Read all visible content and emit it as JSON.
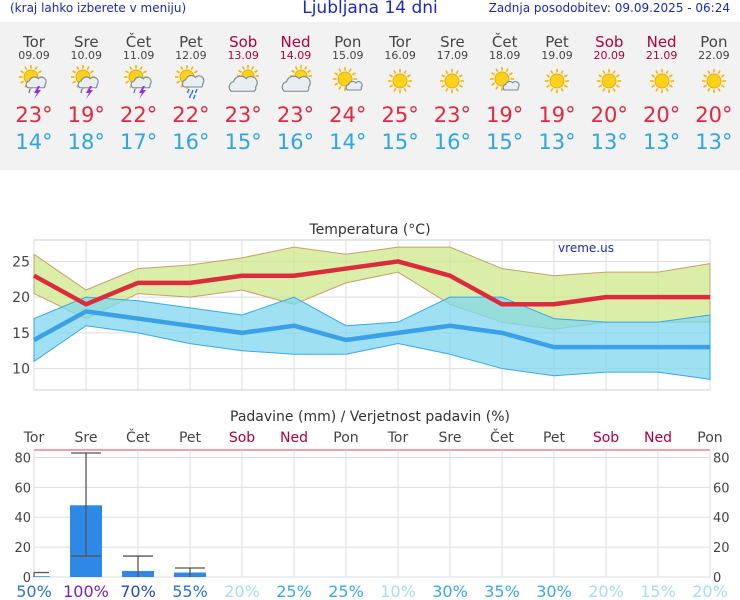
{
  "header": {
    "menu_hint": "(kraj lahko izberete v meniju)",
    "title": "Ljubljana 14 dni",
    "updated": "Zadnja posodobitev: 09.09.2025 - 06:24"
  },
  "colors": {
    "tmax": "#e0283e",
    "tmin": "#2ca6e4",
    "weekend": "#b00040",
    "rain_bar": "#2e88e8"
  },
  "days": [
    {
      "name": "Tor",
      "date": "09.09",
      "weekend": false,
      "icon": "sun-cloud-thunder-icon",
      "tmax": "23°",
      "tmin": "14°"
    },
    {
      "name": "Sre",
      "date": "10.09",
      "weekend": false,
      "icon": "sun-cloud-thunder-icon",
      "tmax": "19°",
      "tmin": "18°"
    },
    {
      "name": "Čet",
      "date": "11.09",
      "weekend": false,
      "icon": "sun-cloud-thunder-icon",
      "tmax": "22°",
      "tmin": "17°"
    },
    {
      "name": "Pet",
      "date": "12.09",
      "weekend": false,
      "icon": "sun-cloud-rain-icon",
      "tmax": "22°",
      "tmin": "16°"
    },
    {
      "name": "Sob",
      "date": "13.09",
      "weekend": true,
      "icon": "cloudy-sun-icon",
      "tmax": "23°",
      "tmin": "15°"
    },
    {
      "name": "Ned",
      "date": "14.09",
      "weekend": true,
      "icon": "cloudy-sun-icon",
      "tmax": "23°",
      "tmin": "16°"
    },
    {
      "name": "Pon",
      "date": "15.09",
      "weekend": false,
      "icon": "sun-small-cloud-icon",
      "tmax": "24°",
      "tmin": "14°"
    },
    {
      "name": "Tor",
      "date": "16.09",
      "weekend": false,
      "icon": "sun-icon",
      "tmax": "25°",
      "tmin": "15°"
    },
    {
      "name": "Sre",
      "date": "17.09",
      "weekend": false,
      "icon": "sun-icon",
      "tmax": "23°",
      "tmin": "16°"
    },
    {
      "name": "Čet",
      "date": "18.09",
      "weekend": false,
      "icon": "sun-small-cloud-icon",
      "tmax": "19°",
      "tmin": "15°"
    },
    {
      "name": "Pet",
      "date": "19.09",
      "weekend": false,
      "icon": "sun-icon",
      "tmax": "19°",
      "tmin": "13°"
    },
    {
      "name": "Sob",
      "date": "20.09",
      "weekend": true,
      "icon": "sun-icon",
      "tmax": "20°",
      "tmin": "13°"
    },
    {
      "name": "Ned",
      "date": "21.09",
      "weekend": true,
      "icon": "sun-icon",
      "tmax": "20°",
      "tmin": "13°"
    },
    {
      "name": "Pon",
      "date": "22.09",
      "weekend": false,
      "icon": "sun-icon",
      "tmax": "20°",
      "tmin": "13°"
    }
  ],
  "chart_data": [
    {
      "type": "line",
      "title": "Temperatura (°C)",
      "watermark": "vreme.us",
      "ylim": [
        7,
        28
      ],
      "yticks": [
        10,
        15,
        20,
        25
      ],
      "grid": true,
      "x": [
        "Tor",
        "Sre",
        "Čet",
        "Pet",
        "Sob",
        "Ned",
        "Pon",
        "Tor",
        "Sre",
        "Čet",
        "Pet",
        "Sob",
        "Ned",
        "Pon"
      ],
      "series": [
        {
          "values": [
            23,
            19,
            22,
            22,
            23,
            23,
            24,
            25,
            23,
            19,
            19,
            20,
            20,
            20
          ]
        },
        {
          "values": [
            14,
            18,
            17,
            16,
            15,
            16,
            14,
            15,
            16,
            15,
            13,
            13,
            13,
            13
          ]
        },
        {
          "values": [
            26,
            21,
            24,
            24.5,
            25.5,
            27,
            26,
            27,
            27,
            24,
            23,
            23.5,
            23.5,
            24.7
          ]
        },
        {
          "values": [
            20.5,
            17,
            20.5,
            20,
            21,
            19,
            22,
            23.5,
            19,
            16.5,
            15.5,
            16.5,
            16.5,
            16.5
          ]
        },
        {
          "values": [
            17,
            20,
            19.5,
            18.5,
            17.5,
            20,
            16,
            16.5,
            20,
            20,
            17,
            16.5,
            16.5,
            17.5
          ]
        },
        {
          "values": [
            11,
            16,
            15,
            13.5,
            12.5,
            12,
            12,
            13.5,
            12,
            10,
            9,
            9.5,
            9.5,
            8.5
          ]
        }
      ]
    },
    {
      "type": "bar",
      "title": "Padavine (mm) / Verjetnost padavin (%)",
      "ylim": [
        0,
        85
      ],
      "yticks": [
        0,
        20,
        40,
        60,
        80
      ],
      "grid": true,
      "categories": [
        "Tor",
        "Sre",
        "Čet",
        "Pet",
        "Sob",
        "Ned",
        "Pon",
        "Tor",
        "Sre",
        "Čet",
        "Pet",
        "Sob",
        "Ned",
        "Pon"
      ],
      "values": [
        0.5,
        48,
        4,
        3,
        0,
        0,
        0,
        0,
        0,
        0,
        0,
        0,
        0,
        0
      ],
      "ranges": [
        [
          0,
          3
        ],
        [
          14,
          83
        ],
        [
          0,
          14
        ],
        [
          0,
          6
        ],
        null,
        null,
        null,
        null,
        null,
        null,
        null,
        null,
        null,
        null
      ],
      "probability": [
        "50%",
        "100%",
        "70%",
        "55%",
        "20%",
        "25%",
        "25%",
        "10%",
        "30%",
        "35%",
        "30%",
        "20%",
        "15%",
        "20%"
      ]
    }
  ]
}
